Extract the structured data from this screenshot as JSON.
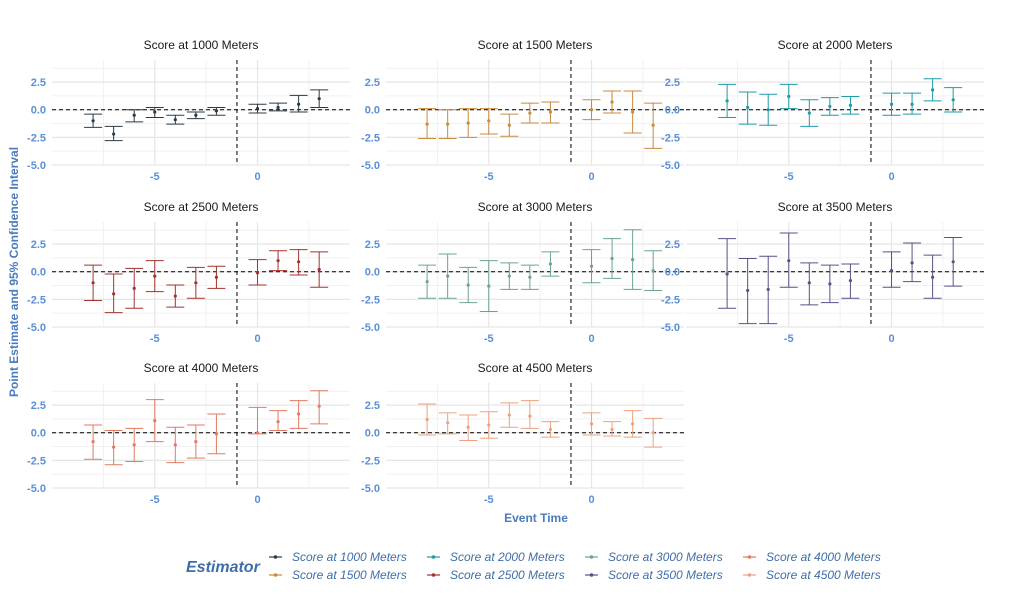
{
  "chart_data": {
    "type": "scatter",
    "subtype": "faceted event-study point estimates with 95% confidence intervals",
    "xlabel": "Event Time",
    "ylabel": "Point Estimate and 95% Confidence Interval",
    "xlim": [
      -10,
      4.5
    ],
    "ylim": [
      -5.0,
      4.5
    ],
    "x_ticks": [
      "-5",
      "0"
    ],
    "x_tick_values": [
      -5,
      0
    ],
    "y_ticks": [
      "2.5",
      "0.0",
      "-2.5",
      "-5.0"
    ],
    "y_tick_values": [
      2.5,
      0.0,
      -2.5,
      -5.0
    ],
    "reference_lines": {
      "horizontal_y": 0,
      "vertical_x": -1
    },
    "grid": true,
    "legend": {
      "title": "Estimator",
      "placement": "bottom",
      "entries": [
        "Score at 1000 Meters",
        "Score at 1500 Meters",
        "Score at 2000 Meters",
        "Score at 2500 Meters",
        "Score at 3000 Meters",
        "Score at 3500 Meters",
        "Score at 4000 Meters",
        "Score at 4500 Meters"
      ]
    },
    "panels": [
      {
        "title": "Score at 1000 Meters",
        "color": "#2b3a44",
        "x": [
          -8,
          -7,
          -6,
          -5,
          -4,
          -3,
          -2,
          0,
          1,
          2,
          3
        ],
        "estimate": [
          -1.0,
          -2.2,
          -0.5,
          -0.2,
          -0.9,
          -0.5,
          -0.1,
          0.1,
          0.2,
          0.5,
          1.0
        ],
        "ci_low": [
          -1.6,
          -2.8,
          -1.1,
          -0.7,
          -1.3,
          -0.8,
          -0.5,
          -0.3,
          -0.1,
          -0.2,
          0.2
        ],
        "ci_high": [
          -0.4,
          -1.5,
          0.0,
          0.2,
          -0.5,
          -0.2,
          0.2,
          0.5,
          0.6,
          1.3,
          1.8
        ]
      },
      {
        "title": "Score at 1500 Meters",
        "color": "#c98a3c",
        "x": [
          -8,
          -7,
          -6,
          -5,
          -4,
          -3,
          -2,
          0,
          1,
          2,
          3
        ],
        "estimate": [
          -1.3,
          -1.3,
          -1.2,
          -1.0,
          -1.4,
          -0.3,
          -0.2,
          0.0,
          0.7,
          -0.2,
          -1.4
        ],
        "ci_low": [
          -2.6,
          -2.6,
          -2.5,
          -2.2,
          -2.4,
          -1.2,
          -1.2,
          -0.9,
          -0.3,
          -2.1,
          -3.5
        ],
        "ci_high": [
          0.1,
          0.0,
          0.1,
          0.1,
          -0.4,
          0.6,
          0.7,
          0.9,
          1.7,
          1.7,
          0.6
        ]
      },
      {
        "title": "Score at 2000 Meters",
        "color": "#1f9aa8",
        "x": [
          -8,
          -7,
          -6,
          -5,
          -4,
          -3,
          -2,
          0,
          1,
          2,
          3
        ],
        "estimate": [
          0.8,
          0.2,
          0.0,
          1.2,
          -0.3,
          0.3,
          0.4,
          0.5,
          0.5,
          1.8,
          0.9
        ],
        "ci_low": [
          -0.7,
          -1.3,
          -1.4,
          0.1,
          -1.5,
          -0.5,
          -0.4,
          -0.5,
          -0.4,
          0.8,
          -0.2
        ],
        "ci_high": [
          2.3,
          1.6,
          1.4,
          2.3,
          0.9,
          1.1,
          1.2,
          1.5,
          1.5,
          2.8,
          2.0
        ]
      },
      {
        "title": "Score at 2500 Meters",
        "color": "#a3322e",
        "x": [
          -8,
          -7,
          -6,
          -5,
          -4,
          -3,
          -2,
          0,
          1,
          2,
          3
        ],
        "estimate": [
          -1.0,
          -2.0,
          -1.5,
          -0.4,
          -2.2,
          -1.0,
          -0.5,
          -0.1,
          1.0,
          0.9,
          0.2
        ],
        "ci_low": [
          -2.6,
          -3.7,
          -3.3,
          -1.8,
          -3.2,
          -2.4,
          -1.5,
          -1.2,
          0.1,
          -0.3,
          -1.4
        ],
        "ci_high": [
          0.6,
          -0.2,
          0.3,
          1.0,
          -1.2,
          0.4,
          0.5,
          1.1,
          1.9,
          2.0,
          1.8
        ]
      },
      {
        "title": "Score at 3000 Meters",
        "color": "#6aa48f",
        "x": [
          -8,
          -7,
          -6,
          -5,
          -4,
          -3,
          -2,
          0,
          1,
          2,
          3
        ],
        "estimate": [
          -0.9,
          -0.4,
          -1.2,
          -1.3,
          -0.4,
          -0.5,
          0.7,
          0.5,
          1.2,
          1.1,
          0.1
        ],
        "ci_low": [
          -2.4,
          -2.4,
          -2.8,
          -3.6,
          -1.6,
          -1.6,
          -0.4,
          -1.0,
          -0.6,
          -1.6,
          -1.7
        ],
        "ci_high": [
          0.6,
          1.6,
          0.4,
          1.0,
          0.8,
          0.6,
          1.8,
          2.0,
          3.0,
          3.8,
          1.9
        ]
      },
      {
        "title": "Score at 3500 Meters",
        "color": "#5d4f86",
        "x": [
          -8,
          -7,
          -6,
          -5,
          -4,
          -3,
          -2,
          0,
          1,
          2,
          3
        ],
        "estimate": [
          -0.2,
          -1.7,
          -1.6,
          1.0,
          -1.0,
          -1.1,
          -0.8,
          0.1,
          0.8,
          -0.5,
          0.9
        ],
        "ci_low": [
          -3.3,
          -4.7,
          -4.7,
          -1.4,
          -3.0,
          -2.8,
          -2.4,
          -1.4,
          -0.9,
          -2.4,
          -1.3
        ],
        "ci_high": [
          3.0,
          1.2,
          1.4,
          3.5,
          0.8,
          0.6,
          0.7,
          1.8,
          2.6,
          1.5,
          3.1
        ]
      },
      {
        "title": "Score at 4000 Meters",
        "color": "#e07a63",
        "x": [
          -8,
          -7,
          -6,
          -5,
          -4,
          -3,
          -2,
          0,
          1,
          2,
          3
        ],
        "estimate": [
          -0.8,
          -1.3,
          -1.1,
          1.1,
          -1.1,
          -0.8,
          -0.1,
          0.0,
          1.0,
          1.7,
          2.4
        ],
        "ci_low": [
          -2.4,
          -2.9,
          -2.6,
          -0.8,
          -2.7,
          -2.3,
          -1.9,
          -0.1,
          0.2,
          0.4,
          0.8
        ],
        "ci_high": [
          0.7,
          0.2,
          0.4,
          3.0,
          0.5,
          0.7,
          1.7,
          2.3,
          2.0,
          2.9,
          3.8
        ]
      },
      {
        "title": "Score at 4500 Meters",
        "color": "#eea07e",
        "x": [
          -8,
          -7,
          -6,
          -5,
          -4,
          -3,
          -2,
          0,
          1,
          2,
          3
        ],
        "estimate": [
          1.2,
          0.9,
          0.5,
          0.7,
          1.6,
          1.5,
          0.3,
          0.8,
          0.3,
          0.8,
          0.0
        ],
        "ci_low": [
          -0.2,
          -0.1,
          -0.7,
          -0.5,
          0.5,
          0.4,
          -0.4,
          -0.2,
          -0.3,
          -0.4,
          -1.3
        ],
        "ci_high": [
          2.6,
          1.8,
          1.6,
          1.9,
          2.7,
          2.9,
          1.0,
          1.8,
          1.0,
          2.0,
          1.3
        ]
      }
    ]
  }
}
